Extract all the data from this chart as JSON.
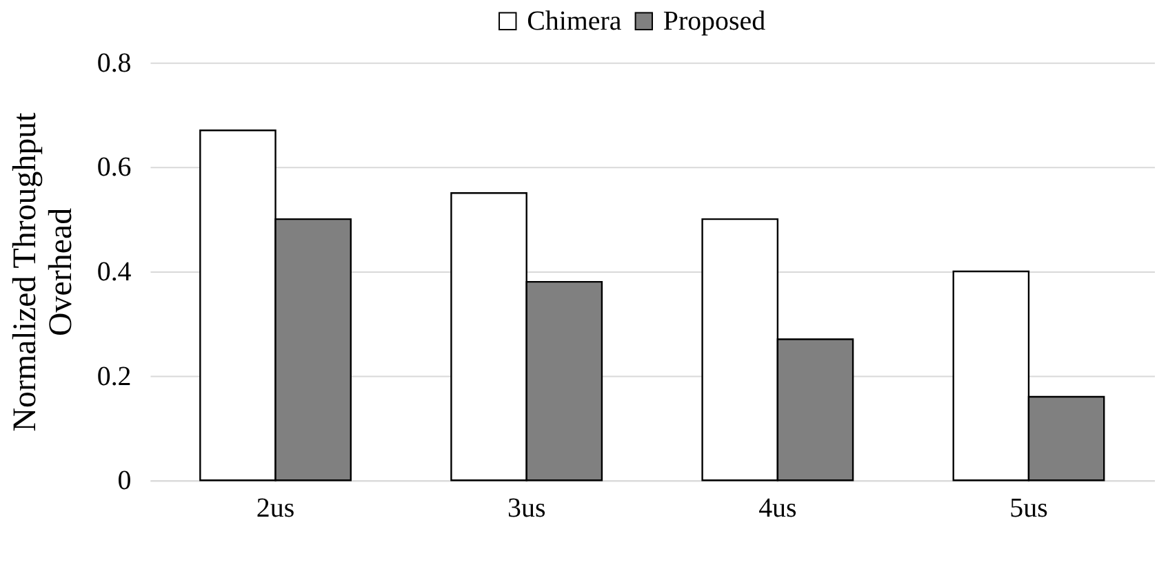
{
  "chart_data": {
    "type": "bar",
    "ylabel": "Normalized Throughput\nOverhead",
    "categories": [
      "2us",
      "3us",
      "4us",
      "5us"
    ],
    "series": [
      {
        "name": "Chimera",
        "color": "#ffffff",
        "values": [
          0.67,
          0.55,
          0.5,
          0.4
        ]
      },
      {
        "name": "Proposed",
        "color": "#808080",
        "values": [
          0.5,
          0.38,
          0.27,
          0.16
        ]
      }
    ],
    "ylim": [
      0,
      0.8
    ],
    "yticks": [
      0,
      0.2,
      0.4,
      0.6,
      0.8
    ],
    "grid": "y",
    "legend": "top"
  }
}
